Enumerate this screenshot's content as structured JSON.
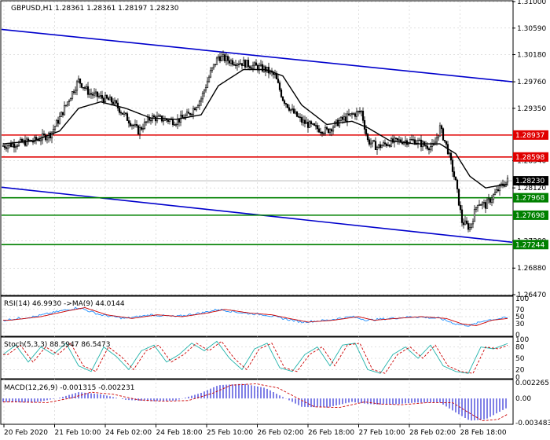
{
  "header": {
    "main": "GBPUSD,H1  1.28361 1.28361 1.28197 1.28230",
    "rsi": "RSI(14) 46.9930  ->MA(9) 44.0144",
    "stoch": "Stoch(5,3,3) 88.5947 86.5473",
    "macd": "MACD(12,26,9) -0.001315 -0.002231"
  },
  "price_axis": {
    "ticks": [
      "1.31000",
      "1.30590",
      "1.30180",
      "1.29760",
      "1.29350",
      "1.28540",
      "1.28120",
      "1.27300",
      "1.26880",
      "1.26470"
    ],
    "tick_values": [
      1.31,
      1.3059,
      1.3018,
      1.2976,
      1.2935,
      1.2854,
      1.2812,
      1.273,
      1.2688,
      1.2647
    ]
  },
  "price_levels": [
    {
      "value": 1.28937,
      "label": "1.28937",
      "color": "#e00000"
    },
    {
      "value": 1.28598,
      "label": "1.28598",
      "color": "#e00000"
    },
    {
      "value": 1.27968,
      "label": "1.27968",
      "color": "#008000"
    },
    {
      "value": 1.27698,
      "label": "1.27698",
      "color": "#008000"
    },
    {
      "value": 1.27244,
      "label": "1.27244",
      "color": "#008000"
    }
  ],
  "current_price": {
    "value": 1.2823,
    "label": "1.28230",
    "color": "#000000"
  },
  "x_axis": {
    "labels": [
      "20 Feb 2020",
      "21 Feb 10:00",
      "24 Feb 02:00",
      "24 Feb 18:00",
      "25 Feb 10:00",
      "26 Feb 02:00",
      "26 Feb 18:00",
      "27 Feb 10:00",
      "28 Feb 02:00",
      "28 Feb 18:00"
    ]
  },
  "indicator_axes": {
    "rsi": [
      "100",
      "70",
      "50",
      "30",
      "0"
    ],
    "stoch": [
      "100",
      "80",
      "50",
      "20",
      "0"
    ],
    "macd": [
      "0.002265",
      "0.00",
      "-0.003483"
    ]
  },
  "colors": {
    "channel": "#0000cc",
    "candle": "#000000",
    "ma": "#000000",
    "rsi_line": "#1e90ff",
    "rsi_ma": "#cc0000",
    "stoch_main": "#20b2aa",
    "stoch_signal": "#cc0000",
    "macd_hist": "#0000cc",
    "macd_signal": "#cc0000",
    "grid": "#c0c0c0"
  },
  "chart_data": {
    "type": "candlestick",
    "symbol": "GBPUSD",
    "timeframe": "H1",
    "ylim": [
      1.2647,
      1.31
    ],
    "channel_lines": [
      {
        "name": "upper",
        "start": 1.3057,
        "end": 1.2976
      },
      {
        "name": "lower",
        "start": 1.2813,
        "end": 1.2728
      }
    ],
    "close_anchors": [
      [
        0,
        1.2877
      ],
      [
        10,
        1.2881
      ],
      [
        20,
        1.2885
      ],
      [
        30,
        1.2895
      ],
      [
        36,
        1.292
      ],
      [
        42,
        1.295
      ],
      [
        48,
        1.2978
      ],
      [
        55,
        1.2958
      ],
      [
        62,
        1.2952
      ],
      [
        70,
        1.2945
      ],
      [
        78,
        1.2922
      ],
      [
        86,
        1.29
      ],
      [
        94,
        1.2921
      ],
      [
        102,
        1.2918
      ],
      [
        110,
        1.2915
      ],
      [
        118,
        1.2925
      ],
      [
        126,
        1.295
      ],
      [
        132,
        1.299
      ],
      [
        137,
        1.3015
      ],
      [
        145,
        1.3008
      ],
      [
        153,
        1.3005
      ],
      [
        160,
        1.3
      ],
      [
        167,
        1.2995
      ],
      [
        173,
        1.2985
      ],
      [
        178,
        1.295
      ],
      [
        184,
        1.293
      ],
      [
        190,
        1.2915
      ],
      [
        198,
        1.2905
      ],
      [
        206,
        1.29
      ],
      [
        214,
        1.2915
      ],
      [
        222,
        1.2925
      ],
      [
        228,
        1.293
      ],
      [
        232,
        1.2885
      ],
      [
        238,
        1.2875
      ],
      [
        246,
        1.2882
      ],
      [
        254,
        1.2885
      ],
      [
        262,
        1.2885
      ],
      [
        268,
        1.2878
      ],
      [
        274,
        1.2875
      ],
      [
        278,
        1.2905
      ],
      [
        283,
        1.287
      ],
      [
        288,
        1.282
      ],
      [
        292,
        1.276
      ],
      [
        297,
        1.275
      ],
      [
        302,
        1.279
      ],
      [
        307,
        1.2785
      ],
      [
        312,
        1.28
      ],
      [
        317,
        1.2815
      ],
      [
        321,
        1.2823
      ]
    ],
    "ma_anchors": [
      [
        0,
        1.288
      ],
      [
        20,
        1.2885
      ],
      [
        36,
        1.29
      ],
      [
        48,
        1.2935
      ],
      [
        62,
        1.2945
      ],
      [
        78,
        1.2935
      ],
      [
        94,
        1.292
      ],
      [
        110,
        1.2918
      ],
      [
        126,
        1.2925
      ],
      [
        137,
        1.297
      ],
      [
        153,
        1.2995
      ],
      [
        167,
        1.2995
      ],
      [
        178,
        1.2985
      ],
      [
        190,
        1.294
      ],
      [
        206,
        1.291
      ],
      [
        222,
        1.2915
      ],
      [
        232,
        1.2905
      ],
      [
        246,
        1.2885
      ],
      [
        262,
        1.288
      ],
      [
        278,
        1.288
      ],
      [
        288,
        1.2865
      ],
      [
        297,
        1.283
      ],
      [
        307,
        1.2812
      ],
      [
        321,
        1.2818
      ]
    ],
    "rsi_anchors": [
      [
        0,
        40
      ],
      [
        20,
        50
      ],
      [
        36,
        65
      ],
      [
        48,
        75
      ],
      [
        62,
        55
      ],
      [
        78,
        45
      ],
      [
        94,
        55
      ],
      [
        110,
        50
      ],
      [
        126,
        60
      ],
      [
        137,
        70
      ],
      [
        153,
        60
      ],
      [
        167,
        55
      ],
      [
        178,
        45
      ],
      [
        190,
        35
      ],
      [
        206,
        40
      ],
      [
        222,
        50
      ],
      [
        232,
        40
      ],
      [
        246,
        45
      ],
      [
        262,
        50
      ],
      [
        278,
        45
      ],
      [
        288,
        30
      ],
      [
        297,
        25
      ],
      [
        307,
        40
      ],
      [
        321,
        47
      ]
    ],
    "stoch_anchors": [
      [
        0,
        60
      ],
      [
        8,
        85
      ],
      [
        16,
        40
      ],
      [
        24,
        80
      ],
      [
        32,
        60
      ],
      [
        40,
        90
      ],
      [
        48,
        30
      ],
      [
        56,
        15
      ],
      [
        64,
        80
      ],
      [
        72,
        55
      ],
      [
        80,
        20
      ],
      [
        88,
        70
      ],
      [
        96,
        85
      ],
      [
        104,
        40
      ],
      [
        112,
        60
      ],
      [
        120,
        90
      ],
      [
        128,
        70
      ],
      [
        136,
        95
      ],
      [
        144,
        50
      ],
      [
        152,
        20
      ],
      [
        160,
        75
      ],
      [
        168,
        90
      ],
      [
        176,
        25
      ],
      [
        184,
        15
      ],
      [
        192,
        60
      ],
      [
        200,
        80
      ],
      [
        208,
        30
      ],
      [
        216,
        85
      ],
      [
        224,
        90
      ],
      [
        232,
        20
      ],
      [
        240,
        10
      ],
      [
        248,
        60
      ],
      [
        256,
        80
      ],
      [
        264,
        50
      ],
      [
        272,
        85
      ],
      [
        280,
        30
      ],
      [
        288,
        15
      ],
      [
        296,
        10
      ],
      [
        304,
        80
      ],
      [
        312,
        75
      ],
      [
        321,
        89
      ]
    ],
    "macd_anchors": [
      [
        0,
        -0.0005
      ],
      [
        20,
        -0.0006
      ],
      [
        36,
        0.0001
      ],
      [
        48,
        0.0009
      ],
      [
        62,
        0.0006
      ],
      [
        78,
        -0.0002
      ],
      [
        94,
        -0.0004
      ],
      [
        110,
        -0.0003
      ],
      [
        126,
        0.0008
      ],
      [
        137,
        0.0019
      ],
      [
        153,
        0.0021
      ],
      [
        167,
        0.0015
      ],
      [
        178,
        0.0002
      ],
      [
        190,
        -0.0012
      ],
      [
        206,
        -0.0013
      ],
      [
        222,
        -0.0005
      ],
      [
        232,
        -0.0008
      ],
      [
        246,
        -0.0009
      ],
      [
        262,
        -0.0006
      ],
      [
        278,
        -0.0006
      ],
      [
        288,
        -0.002
      ],
      [
        297,
        -0.0032
      ],
      [
        307,
        -0.003
      ],
      [
        321,
        -0.0013
      ]
    ]
  }
}
